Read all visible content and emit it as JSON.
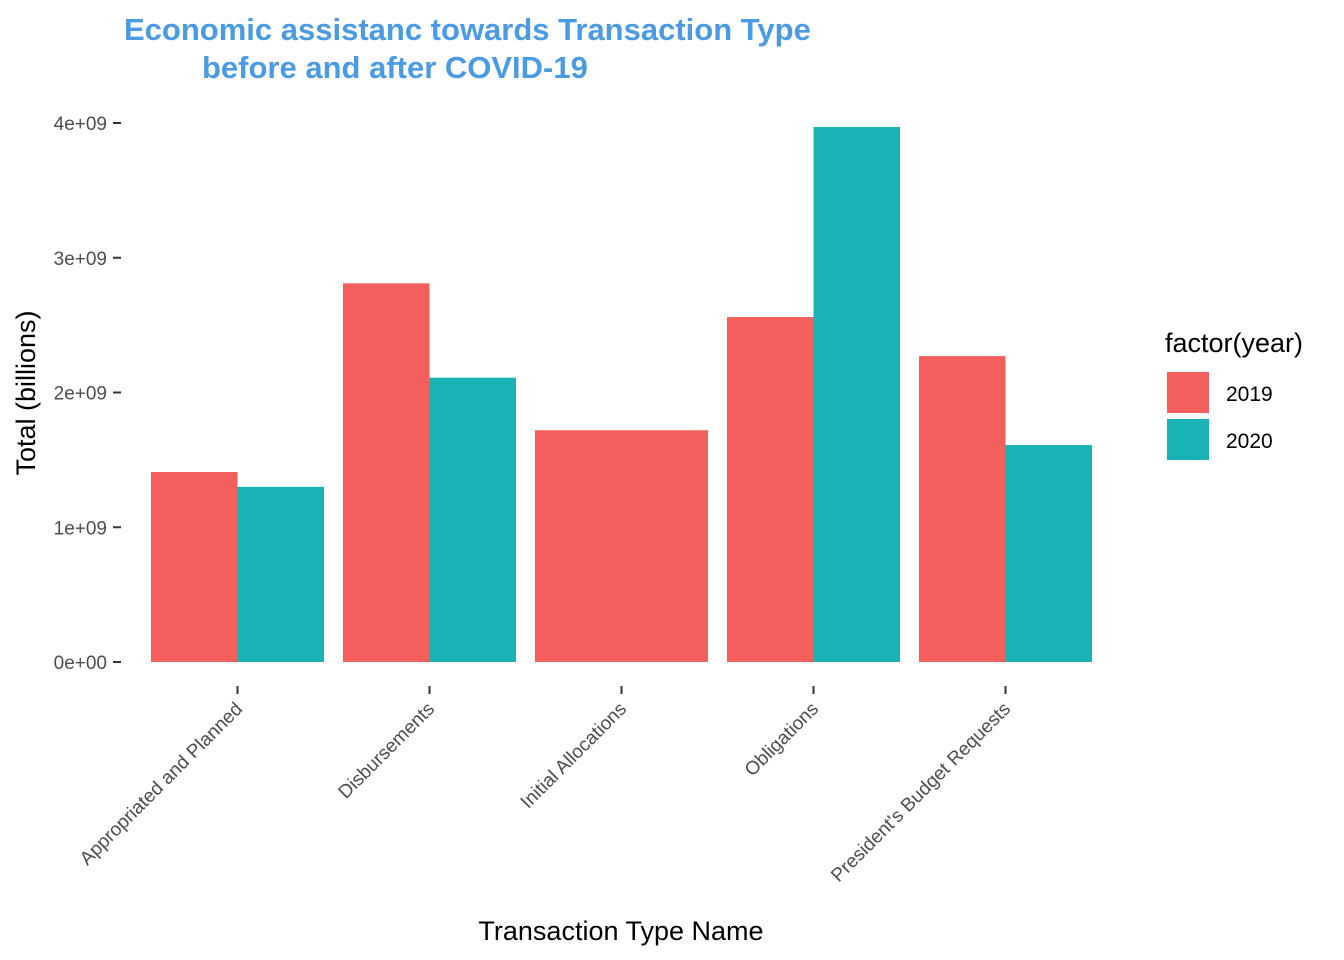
{
  "chart_data": {
    "type": "bar",
    "title": [
      "Economic assistanc towards Transaction Type",
      "before and after COVID-19"
    ],
    "xlabel": "Transaction Type Name",
    "ylabel": "Total (billions)",
    "categories": [
      "Appropriated and Planned",
      "Disbursements",
      "Initial Allocations",
      "Obligations",
      "President's Budget Requests"
    ],
    "series": [
      {
        "name": "2019",
        "values": [
          1410000000,
          2810000000,
          1720000000,
          2560000000,
          2270000000
        ]
      },
      {
        "name": "2020",
        "values": [
          1300000000,
          2110000000,
          null,
          3970000000,
          1610000000
        ]
      }
    ],
    "ylim": [
      0,
      4000000000
    ],
    "yticks": [
      0,
      1000000000,
      2000000000,
      3000000000,
      4000000000
    ],
    "ytick_labels": [
      "0e+00",
      "1e+09",
      "2e+09",
      "3e+09",
      "4e+09"
    ],
    "legend": {
      "title": "factor(year)",
      "position": "right"
    },
    "grid": false,
    "colors": {
      "2019": "#F25F5C",
      "2020": "#1AB3B5",
      "title": "#4A9BE3"
    }
  }
}
